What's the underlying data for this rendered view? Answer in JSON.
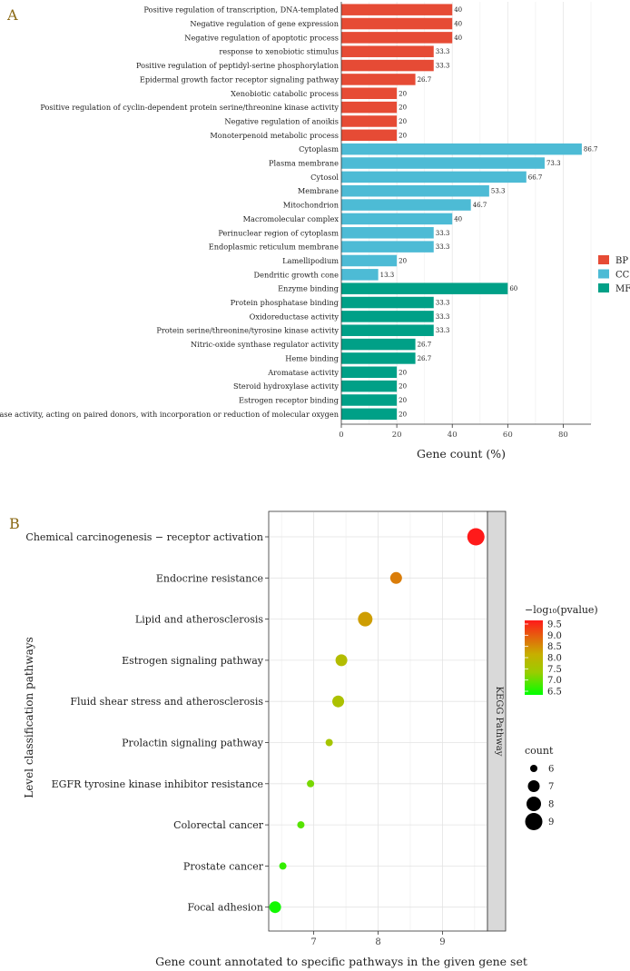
{
  "chart_data": [
    {
      "panel_label": "A",
      "type": "bar",
      "orientation": "horizontal",
      "xlabel": "Gene count (%)",
      "xlim": [
        0,
        90
      ],
      "xticks": [
        "0",
        "20",
        "40",
        "60",
        "80"
      ],
      "xtick_values": [
        0,
        20,
        40,
        60,
        80
      ],
      "legend": [
        {
          "key": "BP",
          "label": "BP",
          "color": "#E64B35"
        },
        {
          "key": "CC",
          "label": "CC",
          "color": "#4DBBD5"
        },
        {
          "key": "MF",
          "label": "MF",
          "color": "#00A087"
        }
      ],
      "categories": [
        {
          "label": "Positive regulation of transcription, DNA-templated",
          "value": 40,
          "value_label": "40",
          "group": "BP"
        },
        {
          "label": "Negative regulation of gene expression",
          "value": 40,
          "value_label": "40",
          "group": "BP"
        },
        {
          "label": "Negative regulation of apoptotic process",
          "value": 40,
          "value_label": "40",
          "group": "BP"
        },
        {
          "label": "response to xenobiotic stimulus",
          "value": 33.3,
          "value_label": "33.3",
          "group": "BP"
        },
        {
          "label": "Positive regulation of peptidyl-serine phosphorylation",
          "value": 33.3,
          "value_label": "33.3",
          "group": "BP"
        },
        {
          "label": "Epidermal growth factor receptor signaling pathway",
          "value": 26.7,
          "value_label": "26.7",
          "group": "BP"
        },
        {
          "label": "Xenobiotic catabolic process",
          "value": 20,
          "value_label": "20",
          "group": "BP"
        },
        {
          "label": "Positive regulation of cyclin-dependent protein serine/threonine kinase activity",
          "value": 20,
          "value_label": "20",
          "group": "BP"
        },
        {
          "label": "Negative regulation of anoikis",
          "value": 20,
          "value_label": "20",
          "group": "BP"
        },
        {
          "label": "Monoterpenoid metabolic process",
          "value": 20,
          "value_label": "20",
          "group": "BP"
        },
        {
          "label": "Cytoplasm",
          "value": 86.7,
          "value_label": "86.7",
          "group": "CC"
        },
        {
          "label": "Plasma membrane",
          "value": 73.3,
          "value_label": "73.3",
          "group": "CC"
        },
        {
          "label": "Cytosol",
          "value": 66.7,
          "value_label": "66.7",
          "group": "CC"
        },
        {
          "label": "Membrane",
          "value": 53.3,
          "value_label": "53.3",
          "group": "CC"
        },
        {
          "label": "Mitochondrion",
          "value": 46.7,
          "value_label": "46.7",
          "group": "CC"
        },
        {
          "label": "Macromolecular complex",
          "value": 40,
          "value_label": "40",
          "group": "CC"
        },
        {
          "label": "Perinuclear region of cytoplasm",
          "value": 33.3,
          "value_label": "33.3",
          "group": "CC"
        },
        {
          "label": "Endoplasmic reticulum membrane",
          "value": 33.3,
          "value_label": "33.3",
          "group": "CC"
        },
        {
          "label": "Lamellipodium",
          "value": 20,
          "value_label": "20",
          "group": "CC"
        },
        {
          "label": "Dendritic growth cone",
          "value": 13.3,
          "value_label": "13.3",
          "group": "CC"
        },
        {
          "label": "Enzyme binding",
          "value": 60,
          "value_label": "60",
          "group": "MF"
        },
        {
          "label": "Protein phosphatase binding",
          "value": 33.3,
          "value_label": "33.3",
          "group": "MF"
        },
        {
          "label": "Oxidoreductase activity",
          "value": 33.3,
          "value_label": "33.3",
          "group": "MF"
        },
        {
          "label": "Protein serine/threonine/tyrosine kinase activity",
          "value": 33.3,
          "value_label": "33.3",
          "group": "MF"
        },
        {
          "label": "Nitric-oxide synthase regulator activity",
          "value": 26.7,
          "value_label": "26.7",
          "group": "MF"
        },
        {
          "label": "Heme binding",
          "value": 26.7,
          "value_label": "26.7",
          "group": "MF"
        },
        {
          "label": "Aromatase activity",
          "value": 20,
          "value_label": "20",
          "group": "MF"
        },
        {
          "label": "Steroid hydroxylase activity",
          "value": 20,
          "value_label": "20",
          "group": "MF"
        },
        {
          "label": "Estrogen receptor binding",
          "value": 20,
          "value_label": "20",
          "group": "MF"
        },
        {
          "label": "Oxidoreductase activity, acting on paired donors, with incorporation or reduction of molecular oxygen",
          "value": 20,
          "value_label": "20",
          "group": "MF"
        }
      ]
    },
    {
      "panel_label": "B",
      "type": "scatter",
      "xlabel": "Gene count annotated to specific pathways in the given gene set",
      "ylabel": "Level classification pathways",
      "xlim": [
        6.3,
        9.7
      ],
      "xticks": [
        "7",
        "8",
        "9"
      ],
      "xtick_values": [
        7,
        8,
        9
      ],
      "facet_label": "KEGG Pathway",
      "color_legend": {
        "title": "−log₁₀(pvalue)",
        "range": [
          6.5,
          9.5
        ],
        "ticks": [
          "9.5",
          "9.0",
          "8.5",
          "8.0",
          "7.5",
          "7.0",
          "6.5"
        ],
        "tick_values": [
          9.5,
          9.0,
          8.5,
          8.0,
          7.5,
          7.0,
          6.5
        ],
        "colors": [
          "#FF1A1A",
          "#00FF00"
        ]
      },
      "size_legend": {
        "title": "count",
        "labels": [
          "6",
          "7",
          "8",
          "9"
        ],
        "values": [
          6,
          7,
          8,
          9
        ]
      },
      "points": [
        {
          "label": "Chemical carcinogenesis − receptor activation",
          "x": 9.52,
          "count": 9,
          "neglog10p": 9.5
        },
        {
          "label": "Endocrine resistance",
          "x": 8.28,
          "count": 7,
          "neglog10p": 8.6
        },
        {
          "label": "Lipid and atherosclerosis",
          "x": 7.8,
          "count": 8,
          "neglog10p": 8.3
        },
        {
          "label": "Estrogen signaling pathway",
          "x": 7.43,
          "count": 7,
          "neglog10p": 7.8
        },
        {
          "label": "Fluid shear stress and atherosclerosis",
          "x": 7.38,
          "count": 7,
          "neglog10p": 7.7
        },
        {
          "label": "Prolactin signaling pathway",
          "x": 7.24,
          "count": 6,
          "neglog10p": 7.6
        },
        {
          "label": "EGFR tyrosine kinase inhibitor resistance",
          "x": 6.95,
          "count": 6,
          "neglog10p": 7.2
        },
        {
          "label": "Colorectal cancer",
          "x": 6.8,
          "count": 6,
          "neglog10p": 7.0
        },
        {
          "label": "Prostate cancer",
          "x": 6.52,
          "count": 6,
          "neglog10p": 6.8
        },
        {
          "label": "Focal adhesion",
          "x": 6.4,
          "count": 7,
          "neglog10p": 6.6
        }
      ]
    }
  ]
}
